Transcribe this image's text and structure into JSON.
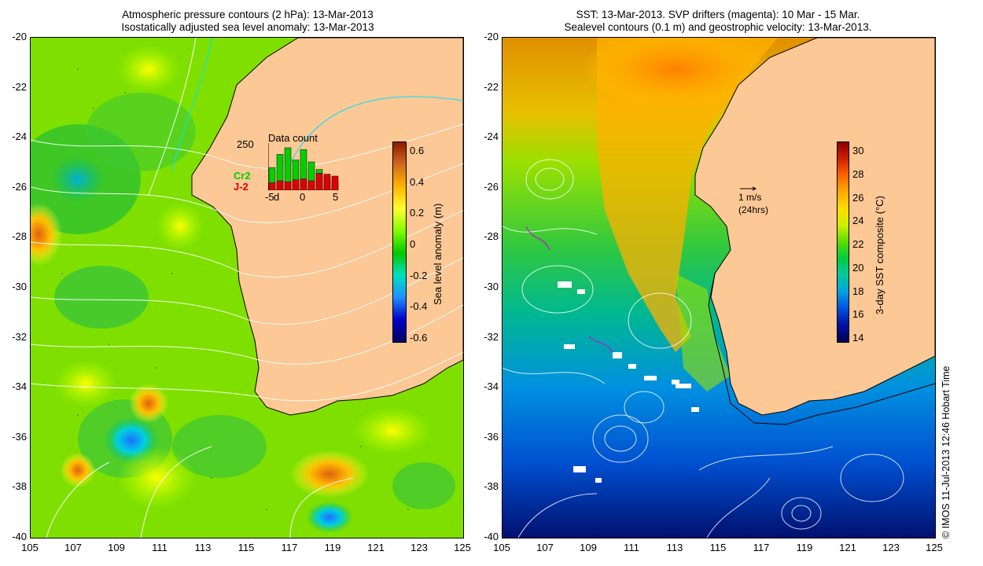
{
  "left": {
    "title_line1": "Atmospheric pressure contours (2 hPa): 13-Mar-2013",
    "title_line2": "Isostatically adjusted sea level anomaly: 13-Mar-2013",
    "y_ticks": [
      "-20",
      "-22",
      "-24",
      "-26",
      "-28",
      "-30",
      "-32",
      "-34",
      "-36",
      "-38",
      "-40"
    ],
    "x_ticks": [
      "105",
      "107",
      "109",
      "111",
      "113",
      "115",
      "117",
      "119",
      "121",
      "123",
      "125"
    ],
    "colorbar": {
      "label": "Sea level anomaly (m)",
      "ticks": [
        "0.6",
        "0.4",
        "0.2",
        "0",
        "-0.2",
        "-0.4",
        "-0.6"
      ],
      "colors": [
        "#8b1a00",
        "#d2691e",
        "#ffb400",
        "#ffff33",
        "#7fff00",
        "#00c800",
        "#00e0c0",
        "#1e90ff",
        "#0000c8",
        "#000060"
      ]
    },
    "inset": {
      "title": "Data count",
      "y_label": "250",
      "x_ticks": [
        "-5",
        "0",
        "5"
      ],
      "d_label": "d",
      "series": [
        {
          "name": "Cr2",
          "color": "#00d000",
          "values": [
            120,
            190,
            225,
            160,
            215,
            150,
            110,
            70,
            40
          ]
        },
        {
          "name": "J-2",
          "color": "#e00000",
          "values": [
            40,
            50,
            45,
            55,
            60,
            50,
            90,
            85,
            75
          ]
        }
      ]
    }
  },
  "right": {
    "title_line1": "SST: 13-Mar-2013. SVP drifters (magenta): 10 Mar - 15 Mar.",
    "title_line2": "Sealevel contours (0.1 m) and geostrophic velocity: 13-Mar-2013.",
    "y_ticks": [
      "-20",
      "-22",
      "-24",
      "-26",
      "-28",
      "-30",
      "-32",
      "-34",
      "-36",
      "-38",
      "-40"
    ],
    "x_ticks": [
      "105",
      "107",
      "109",
      "111",
      "113",
      "115",
      "117",
      "119",
      "121",
      "123",
      "125"
    ],
    "colorbar": {
      "label": "3-day SST composite (°C)",
      "ticks": [
        "30",
        "28",
        "26",
        "24",
        "22",
        "20",
        "18",
        "16",
        "14"
      ],
      "colors": [
        "#8b0000",
        "#cc2200",
        "#ff6600",
        "#ffaa00",
        "#ffdd00",
        "#ccee00",
        "#55dd00",
        "#00cc44",
        "#00c8a0",
        "#00a0e0",
        "#0050e0",
        "#0010a0",
        "#000050"
      ]
    },
    "velocity_key": {
      "line1": "1 m/s",
      "line2": "(24hrs)"
    }
  },
  "credit": "© IMOS 11-Jul-2013 12:46 Hobart Time",
  "colors": {
    "land": "#fcc896",
    "coast": "#000000",
    "contour": "#ffffff"
  }
}
